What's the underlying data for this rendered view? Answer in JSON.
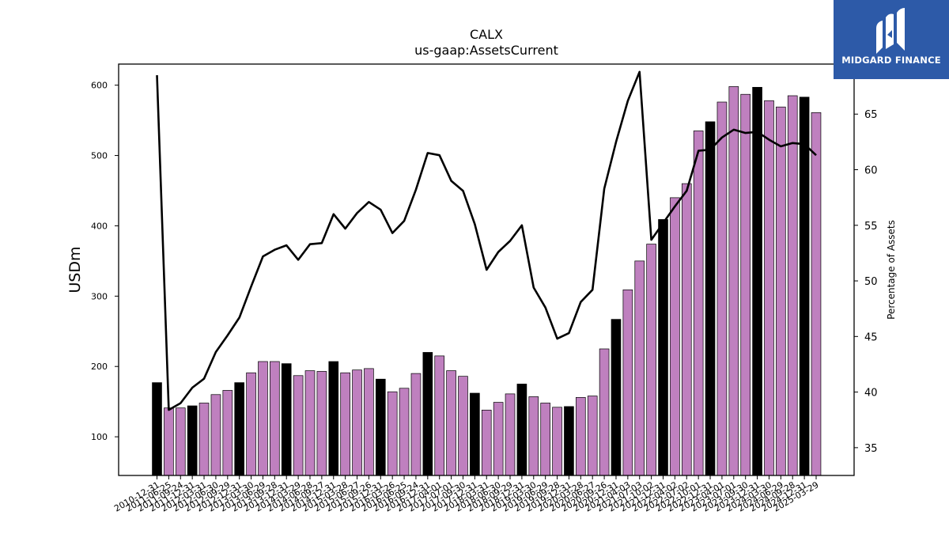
{
  "chart_data": {
    "type": "bar",
    "title": "CALX",
    "subtitle": "us-gaap:AssetsCurrent",
    "ylabel": "USDm",
    "y2label": "Percentage of Assets",
    "ylim": [
      45,
      630
    ],
    "y2lim": [
      32.5,
      69.5
    ],
    "yticks": [
      100,
      200,
      300,
      400,
      500,
      600
    ],
    "y2ticks": [
      35,
      40,
      45,
      50,
      55,
      60,
      65
    ],
    "x": [
      "2010-12-31",
      "2011-06-25",
      "2011-09-24",
      "2011-12-31",
      "2012-03-31",
      "2012-06-30",
      "2012-09-29",
      "2012-12-31",
      "2013-03-30",
      "2013-06-29",
      "2013-09-28",
      "2013-12-31",
      "2014-03-29",
      "2014-06-28",
      "2014-09-27",
      "2014-12-31",
      "2015-03-28",
      "2015-06-27",
      "2015-09-26",
      "2015-12-31",
      "2016-03-26",
      "2016-06-25",
      "2016-09-24",
      "2016-12-31",
      "2017-04-01",
      "2017-07-01",
      "2017-09-30",
      "2017-12-31",
      "2018-03-31",
      "2018-06-30",
      "2018-09-29",
      "2018-12-31",
      "2019-03-30",
      "2019-06-29",
      "2019-09-28",
      "2019-12-31",
      "2020-03-28",
      "2020-06-27",
      "2020-09-26",
      "2020-12-31",
      "2021-04-03",
      "2021-07-03",
      "2021-10-02",
      "2021-12-31",
      "2022-04-02",
      "2022-07-02",
      "2022-10-01",
      "2022-12-31",
      "2023-04-01",
      "2023-07-01",
      "2023-09-30",
      "2023-12-31",
      "2024-03-30",
      "2024-06-29",
      "2024-09-28",
      "2024-12-31",
      "2025-03-29"
    ],
    "tick_labels": [
      "2010-12-31",
      "2011-06-25",
      "2011-09-24",
      "2011-12-31",
      "2012-03-31",
      "2012-06-30",
      "2012-09-29",
      "2012-12-31",
      "2013-03-30",
      "2013-06-29",
      "2013-09-28",
      "2013-12-31",
      "2014-03-29",
      "2014-06-28",
      "2014-09-27",
      "2014-12-31",
      "2015-03-28",
      "2015-06-27",
      "2015-09-26",
      "2015-12-31",
      "2016-03-26",
      "2016-06-25",
      "2016-09-24",
      "2016-12-31",
      "2017-04-01",
      "2017-07-01",
      "2017-09-30",
      "2017-12-31",
      "2018-03-31",
      "2018-06-30",
      "2018-09-29",
      "2018-12-31",
      "2019-03-30",
      "2019-06-29",
      "2019-09-28",
      "2019-12-31",
      "2020-03-28",
      "2020-06-27",
      "2020-09-26",
      "2020-12-31",
      "2021-04-03",
      "2021-07-03",
      "2021-10-02",
      "2021-12-31",
      "2022-04-02",
      "2022-07-02",
      "2022-10-01",
      "2022-12-31",
      "2023-04-01",
      "2023-07-01",
      "2023-09-30",
      "2023-12-31",
      "2024-03-30",
      "2024-06-29",
      "2024-09-28",
      "2024-12-31",
      "2025-03-29"
    ],
    "series": [
      {
        "kind": "bar",
        "axis": "left",
        "values": [
          177,
          141,
          141,
          144,
          148,
          160,
          166,
          177,
          191,
          207,
          207,
          204,
          187,
          194,
          193,
          207,
          191,
          195,
          197,
          182,
          164,
          169,
          190,
          220,
          215,
          194,
          186,
          162,
          138,
          149,
          161,
          175,
          157,
          148,
          142,
          143,
          156,
          158,
          225,
          267,
          309,
          350,
          374,
          409,
          440,
          460,
          535,
          548,
          576,
          598,
          587,
          597,
          578,
          569,
          585,
          583,
          561
        ],
        "year_end": [
          true,
          false,
          false,
          true,
          false,
          false,
          false,
          true,
          false,
          false,
          false,
          true,
          false,
          false,
          false,
          true,
          false,
          false,
          false,
          true,
          false,
          false,
          false,
          true,
          false,
          false,
          false,
          true,
          false,
          false,
          false,
          true,
          false,
          false,
          false,
          true,
          false,
          false,
          false,
          true,
          false,
          false,
          false,
          true,
          false,
          false,
          false,
          true,
          false,
          false,
          false,
          true,
          false,
          false,
          false,
          true,
          false
        ]
      },
      {
        "kind": "line",
        "axis": "right",
        "values": [
          68.5,
          38.4,
          39.0,
          40.4,
          41.2,
          43.6,
          45.1,
          46.7,
          49.5,
          52.2,
          52.8,
          53.2,
          51.9,
          53.3,
          53.4,
          56.0,
          54.7,
          56.1,
          57.1,
          56.4,
          54.3,
          55.4,
          58.2,
          61.5,
          61.3,
          59.0,
          58.1,
          55.1,
          51.0,
          52.6,
          53.6,
          55.0,
          49.4,
          47.6,
          44.8,
          45.3,
          48.1,
          49.2,
          58.3,
          62.5,
          66.2,
          68.8,
          53.7,
          55.2,
          56.7,
          58.1,
          61.7,
          61.8,
          62.9,
          63.6,
          63.3,
          63.4,
          62.7,
          62.1,
          62.4,
          62.3,
          61.3
        ]
      }
    ],
    "colors": {
      "bar": "#bf80bf",
      "bar_year_end": "#000000",
      "line": "#000000"
    },
    "grid": false,
    "legend": "none"
  },
  "logo": {
    "text": "MIDGARD FINANCE"
  }
}
